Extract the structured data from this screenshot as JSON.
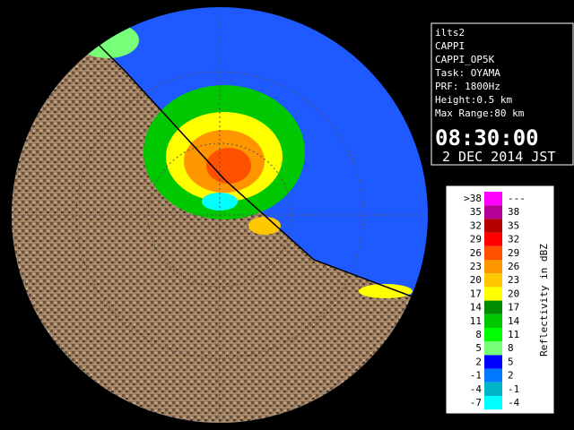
{
  "info": {
    "lines": [
      "ilts2",
      "CAPPI",
      "CAPPI_OP5K",
      "Task: OYAMA",
      "PRF: 1800Hz",
      "Height:0.5 km",
      "Max Range:80 km"
    ],
    "time": "08:30:00",
    "date": "2 DEC 2014 JST"
  },
  "legend": {
    "title": "Reflectivity in dBZ",
    "rows": [
      {
        "low": ">38",
        "high": "---",
        "color": "#ff00ff"
      },
      {
        "low": "35",
        "high": "38",
        "color": "#b40096"
      },
      {
        "low": "32",
        "high": "35",
        "color": "#b40000"
      },
      {
        "low": "29",
        "high": "32",
        "color": "#ff0000"
      },
      {
        "low": "26",
        "high": "29",
        "color": "#ff5000"
      },
      {
        "low": "23",
        "high": "26",
        "color": "#ff9600"
      },
      {
        "low": "20",
        "high": "23",
        "color": "#ffc800"
      },
      {
        "low": "17",
        "high": "20",
        "color": "#ffff00"
      },
      {
        "low": "14",
        "high": "17",
        "color": "#008c00"
      },
      {
        "low": "11",
        "high": "14",
        "color": "#00c800"
      },
      {
        "low": "8",
        "high": "11",
        "color": "#00ff00"
      },
      {
        "low": "5",
        "high": "8",
        "color": "#78ff78"
      },
      {
        "low": "2",
        "high": "5",
        "color": "#0000ff"
      },
      {
        "low": "-1",
        "high": "2",
        "color": "#0078ff"
      },
      {
        "low": "-4",
        "high": "-1",
        "color": "#00b4c8"
      },
      {
        "low": "-7",
        "high": "-4",
        "color": "#00ffff"
      }
    ]
  }
}
